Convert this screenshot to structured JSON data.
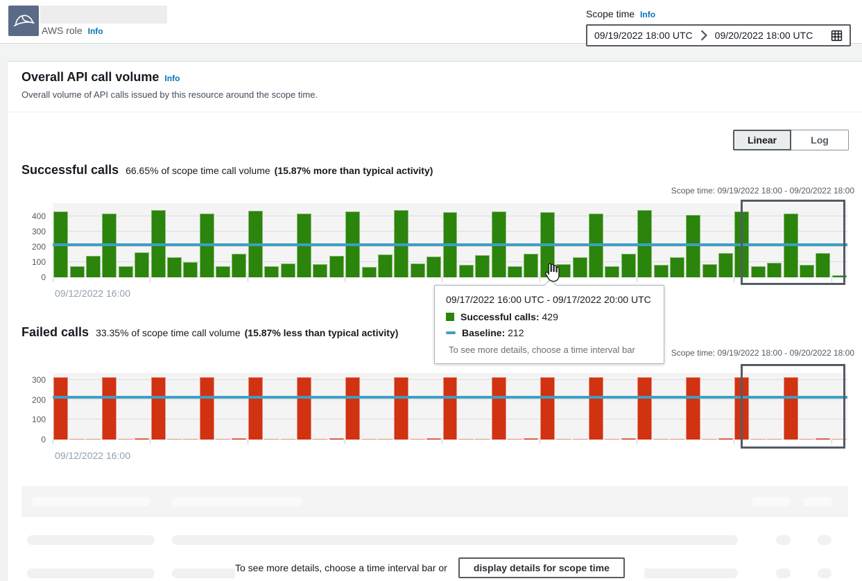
{
  "header": {
    "aws_role_label": "AWS role",
    "info_label": "Info",
    "scope_time": {
      "label": "Scope time",
      "info_label": "Info",
      "start": "09/19/2022 18:00 UTC",
      "end": "09/20/2022 18:00 UTC"
    }
  },
  "panel": {
    "title": "Overall API call volume",
    "info_label": "Info",
    "description": "Overall volume of API calls issued by this resource around the scope time.",
    "toggle": {
      "linear": "Linear",
      "log": "Log"
    }
  },
  "successful": {
    "title": "Successful calls",
    "subtitle": "66.65% of scope time call volume",
    "comparison": "(15.87% more than typical activity)",
    "scope_label": "Scope time: 09/19/2022 18:00 - 09/20/2022 18:00",
    "x_axis_label": "09/12/2022 16:00"
  },
  "failed": {
    "title": "Failed calls",
    "subtitle": "33.35% of scope time call volume",
    "comparison": "(15.87% less than typical activity)",
    "scope_label": "Scope time: 09/19/2022 18:00 - 09/20/2022 18:00",
    "x_axis_label": "09/12/2022 16:00"
  },
  "tooltip": {
    "title": "09/17/2022 16:00 UTC - 09/17/2022 20:00 UTC",
    "series_label": "Successful calls:",
    "series_value": "429",
    "baseline_label": "Baseline:",
    "baseline_value": "212",
    "hint": "To see more details, choose a time interval bar"
  },
  "footer": {
    "hint": "To see more details, choose a time interval bar or",
    "button_label": "display details for scope time"
  },
  "colors": {
    "successful": "#2b840b",
    "failed": "#d13212",
    "baseline": "#3e9fc4"
  },
  "chart_data": [
    {
      "type": "bar",
      "title": "Successful calls",
      "color": "#2b840b",
      "baseline": 212,
      "baseline_color": "#3e9fc4",
      "x_start_label": "09/12/2022 16:00",
      "interval_hours": 4,
      "ylim": [
        0,
        486
      ],
      "yticks": [
        0,
        100,
        200,
        300,
        400
      ],
      "values": [
        430,
        75,
        140,
        420,
        75,
        165,
        440,
        130,
        100,
        420,
        75,
        155,
        435,
        75,
        90,
        420,
        85,
        140,
        430,
        70,
        150,
        440,
        90,
        135,
        425,
        80,
        145,
        430,
        75,
        155,
        429,
        85,
        130,
        420,
        75,
        155,
        440,
        80,
        130,
        410,
        85,
        160,
        430,
        75,
        95,
        420,
        80,
        160,
        15
      ],
      "scope_box": {
        "start_index": 42.4,
        "end_index": 48.6
      }
    },
    {
      "type": "bar",
      "title": "Failed calls",
      "color": "#d13212",
      "baseline": 212,
      "baseline_color": "#3e9fc4",
      "x_start_label": "09/12/2022 16:00",
      "interval_hours": 4,
      "ylim": [
        0,
        335
      ],
      "yticks": [
        0,
        100,
        200,
        300
      ],
      "values": [
        315,
        0,
        0,
        315,
        0,
        6,
        315,
        0,
        0,
        315,
        0,
        6,
        315,
        0,
        0,
        315,
        0,
        6,
        315,
        0,
        0,
        315,
        0,
        6,
        315,
        0,
        0,
        315,
        0,
        6,
        315,
        0,
        0,
        315,
        0,
        6,
        315,
        0,
        0,
        315,
        0,
        6,
        315,
        0,
        0,
        315,
        0,
        6,
        0
      ],
      "scope_box": {
        "start_index": 42.4,
        "end_index": 48.6
      }
    }
  ]
}
